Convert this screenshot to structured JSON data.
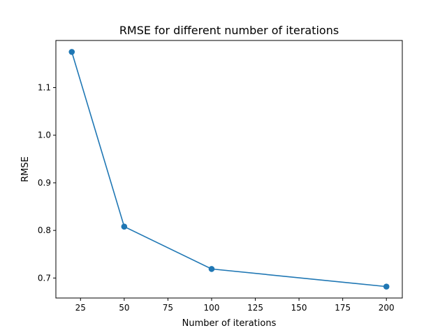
{
  "chart_data": {
    "type": "line",
    "title": "RMSE for different number of iterations",
    "xlabel": "Number of iterations",
    "ylabel": "RMSE",
    "xlim": [
      10.9,
      209.1
    ],
    "ylim": [
      0.658,
      1.199
    ],
    "xticks": [
      25,
      50,
      75,
      100,
      125,
      150,
      175,
      200
    ],
    "yticks": [
      0.7,
      0.8,
      0.9,
      1.0,
      1.1
    ],
    "xtick_labels": [
      "25",
      "50",
      "75",
      "100",
      "125",
      "150",
      "175",
      "200"
    ],
    "ytick_labels": [
      "0.7",
      "0.8",
      "0.9",
      "1.0",
      "1.1"
    ],
    "grid": false,
    "series": [
      {
        "name": "RMSE",
        "color": "#1f77b4",
        "marker": "circle",
        "x": [
          20,
          50,
          100,
          200
        ],
        "y": [
          1.175,
          0.808,
          0.719,
          0.682
        ]
      }
    ]
  }
}
